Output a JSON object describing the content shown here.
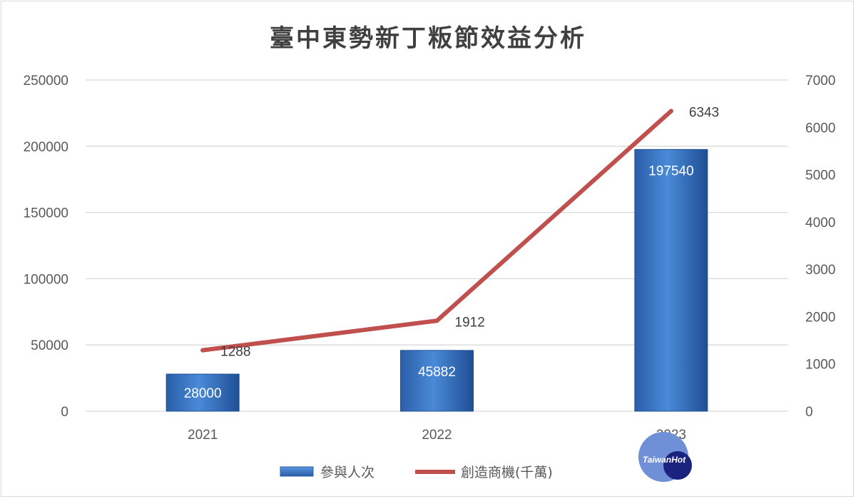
{
  "chart_data": {
    "type": "bar",
    "title": "臺中東勢新丁粄節效益分析",
    "categories": [
      "2021",
      "2022",
      "2023"
    ],
    "series": [
      {
        "name": "參與人次",
        "type": "bar",
        "axis": "left",
        "values": [
          28000,
          45882,
          197540
        ],
        "color": "#3f7ccc"
      },
      {
        "name": "創造商機(千萬)",
        "type": "line",
        "axis": "right",
        "values": [
          1288,
          1912,
          6343
        ],
        "color": "#c0504d"
      }
    ],
    "ylim": [
      0,
      250000
    ],
    "y_ticks": [
      "0",
      "50000",
      "100000",
      "150000",
      "200000",
      "250000"
    ],
    "y2lim": [
      0,
      7000
    ],
    "y2_ticks": [
      "0",
      "1000",
      "2000",
      "3000",
      "4000",
      "5000",
      "6000",
      "7000"
    ],
    "grid": true,
    "legend_position": "bottom"
  },
  "watermark": {
    "text": "TaiwanHot",
    "color": "#1a237e",
    "circle_color": "#6f8fd6"
  }
}
